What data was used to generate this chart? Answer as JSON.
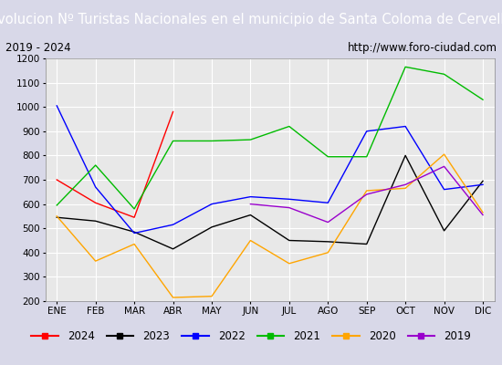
{
  "title": "Evolucion Nº Turistas Nacionales en el municipio de Santa Coloma de Cervelló",
  "subtitle_left": "2019 - 2024",
  "subtitle_right": "http://www.foro-ciudad.com",
  "months": [
    "ENE",
    "FEB",
    "MAR",
    "ABR",
    "MAY",
    "JUN",
    "JUL",
    "AGO",
    "SEP",
    "OCT",
    "NOV",
    "DIC"
  ],
  "ylim": [
    200,
    1200
  ],
  "yticks": [
    200,
    300,
    400,
    500,
    600,
    700,
    800,
    900,
    1000,
    1100,
    1200
  ],
  "series": {
    "2024": {
      "color": "#ff0000",
      "values": [
        700,
        605,
        545,
        980,
        null,
        null,
        null,
        null,
        null,
        null,
        null,
        null
      ]
    },
    "2023": {
      "color": "#000000",
      "values": [
        545,
        530,
        485,
        415,
        505,
        555,
        450,
        445,
        435,
        800,
        490,
        695
      ]
    },
    "2022": {
      "color": "#0000ff",
      "values": [
        1005,
        670,
        480,
        515,
        600,
        630,
        620,
        605,
        900,
        920,
        660,
        680
      ]
    },
    "2021": {
      "color": "#00bb00",
      "values": [
        595,
        760,
        580,
        860,
        860,
        865,
        920,
        795,
        795,
        1165,
        1135,
        1030
      ]
    },
    "2020": {
      "color": "#ffa500",
      "values": [
        550,
        365,
        435,
        215,
        220,
        450,
        355,
        400,
        655,
        665,
        805,
        565
      ]
    },
    "2019": {
      "color": "#9900cc",
      "values": [
        null,
        null,
        null,
        null,
        null,
        600,
        585,
        525,
        640,
        680,
        755,
        555
      ]
    }
  },
  "legend_order": [
    "2024",
    "2023",
    "2022",
    "2021",
    "2020",
    "2019"
  ],
  "title_fontsize": 10.5,
  "subtitle_fontsize": 8.5,
  "tick_fontsize": 7.5,
  "legend_fontsize": 8.5,
  "title_bg_color": "#2255cc",
  "title_text_color": "#ffffff",
  "subtitle_bg_color": "#e8e8e8",
  "plot_bg_color": "#e8e8e8",
  "outer_bg_color": "#d8d8e8",
  "grid_color": "#ffffff"
}
